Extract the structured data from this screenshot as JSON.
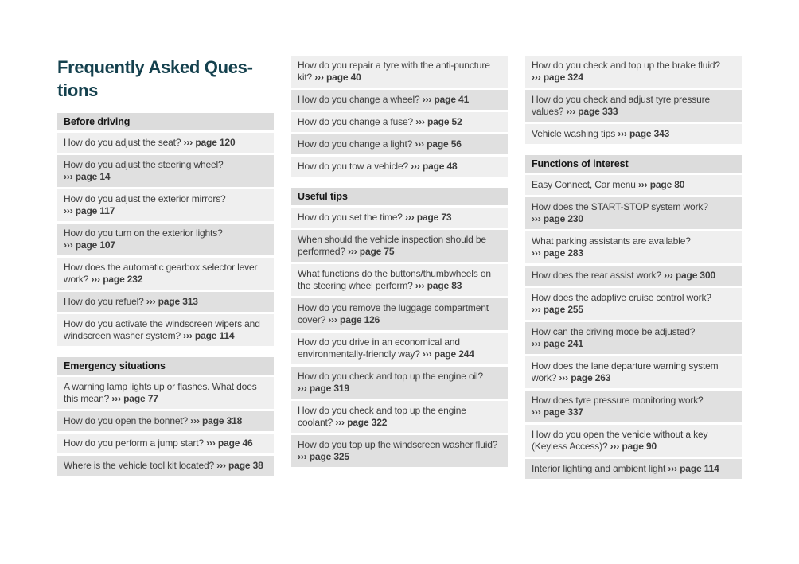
{
  "page": {
    "title": "Frequently Asked Questions",
    "title_lines": [
      "Frequently Asked Ques-",
      "tions"
    ]
  },
  "ref_marker": "›››",
  "colors": {
    "title_text": "#15414e",
    "row_light_bg": "#efefef",
    "row_dark_bg": "#e0e0e0",
    "section_header_bg": "#dcdcdc",
    "body_text": "#3e3e3e"
  },
  "columns": [
    {
      "blocks": [
        {
          "type": "section",
          "label": "Before driving"
        },
        {
          "type": "item",
          "question": "How do you adjust the seat?",
          "page_ref": "page 120"
        },
        {
          "type": "item",
          "question": "How do you adjust the steering wheel?",
          "page_ref": "page 14"
        },
        {
          "type": "item",
          "question": "How do you adjust the exterior mirrors?",
          "page_ref": "page 117"
        },
        {
          "type": "item",
          "question": "How do you turn on the exterior lights?",
          "page_ref": "page 107"
        },
        {
          "type": "item",
          "question": "How does the automatic gearbox selector lever work?",
          "page_ref": "page 232"
        },
        {
          "type": "item",
          "question": "How do you refuel?",
          "page_ref": "page 313"
        },
        {
          "type": "item",
          "question": "How do you activate the windscreen wipers and windscreen washer system?",
          "page_ref": "page 114"
        },
        {
          "type": "section",
          "label": "Emergency situations"
        },
        {
          "type": "item",
          "question": "A warning lamp lights up or flashes. What does this mean?",
          "page_ref": "page 77"
        },
        {
          "type": "item",
          "question": "How do you open the bonnet?",
          "page_ref": "page 318"
        },
        {
          "type": "item",
          "question": "How do you perform a jump start?",
          "page_ref": "page 46"
        },
        {
          "type": "item",
          "question": "Where is the vehicle tool kit located?",
          "page_ref": "page 38"
        }
      ]
    },
    {
      "blocks": [
        {
          "type": "item",
          "question": "How do you repair a tyre with the anti-puncture kit?",
          "page_ref": "page 40"
        },
        {
          "type": "item",
          "question": "How do you change a wheel?",
          "page_ref": "page 41"
        },
        {
          "type": "item",
          "question": "How do you change a fuse?",
          "page_ref": "page 52"
        },
        {
          "type": "item",
          "question": "How do you change a light?",
          "page_ref": "page 56"
        },
        {
          "type": "item",
          "question": "How do you tow a vehicle?",
          "page_ref": "page 48"
        },
        {
          "type": "section",
          "label": "Useful tips"
        },
        {
          "type": "item",
          "question": "How do you set the time?",
          "page_ref": "page 73"
        },
        {
          "type": "item",
          "question": "When should the vehicle inspection should be performed?",
          "page_ref": "page 75"
        },
        {
          "type": "item",
          "question": "What functions do the buttons/thumbwheels on the steering wheel perform?",
          "page_ref": "page 83"
        },
        {
          "type": "item",
          "question": "How do you remove the luggage compartment cover?",
          "page_ref": "page 126"
        },
        {
          "type": "item",
          "question": "How do you drive in an economical and environmentally-friendly way?",
          "page_ref": "page 244"
        },
        {
          "type": "item",
          "question": "How do you check and top up the engine oil?",
          "page_ref": "page 319"
        },
        {
          "type": "item",
          "question": "How do you check and top up the engine coolant?",
          "page_ref": "page 322"
        },
        {
          "type": "item",
          "question": "How do you top up the windscreen washer fluid?",
          "page_ref": "page 325"
        }
      ]
    },
    {
      "blocks": [
        {
          "type": "item",
          "question": "How do you check and top up the brake fluid?",
          "page_ref": "page 324"
        },
        {
          "type": "item",
          "question": "How do you check and adjust tyre pressure values?",
          "page_ref": "page 333"
        },
        {
          "type": "item",
          "question": "Vehicle washing tips",
          "page_ref": "page 343"
        },
        {
          "type": "section",
          "label": "Functions of interest"
        },
        {
          "type": "item",
          "question": "Easy Connect, Car menu",
          "page_ref": "page 80"
        },
        {
          "type": "item",
          "question": "How does the START-STOP system work?",
          "page_ref": "page 230"
        },
        {
          "type": "item",
          "question": "What parking assistants are available?",
          "page_ref": "page 283"
        },
        {
          "type": "item",
          "question": "How does the rear assist work?",
          "page_ref": "page 300"
        },
        {
          "type": "item",
          "question": "How does the adaptive cruise control work?",
          "page_ref": "page 255"
        },
        {
          "type": "item",
          "question": "How can the driving mode be adjusted?",
          "page_ref": "page 241"
        },
        {
          "type": "item",
          "question": "How does the lane departure warning system work?",
          "page_ref": "page 263"
        },
        {
          "type": "item",
          "question": "How does tyre pressure monitoring work?",
          "page_ref": "page 337"
        },
        {
          "type": "item",
          "question": "How do you open the vehicle without a key (Keyless Access)?",
          "page_ref": "page 90"
        },
        {
          "type": "item",
          "question": "Interior lighting and ambient light",
          "page_ref": "page 114"
        }
      ]
    }
  ]
}
